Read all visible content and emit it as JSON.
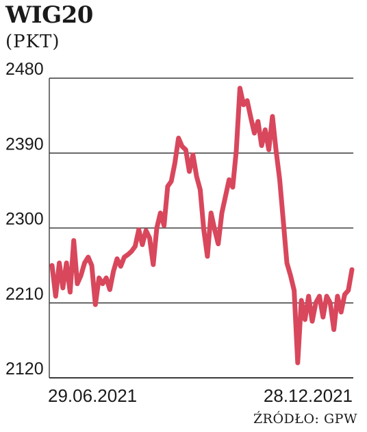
{
  "header": {
    "title": "WIG20",
    "unit": "(PKT)"
  },
  "source": "ŹRÓDŁO: GPW",
  "colors": {
    "line": "#d8475c",
    "grid": "#3a3a3a",
    "text": "#1a1a1a"
  },
  "chart_data": {
    "type": "line",
    "title": "WIG20",
    "ylabel": "(PKT)",
    "ylim": [
      2120,
      2480
    ],
    "yticks": [
      2480,
      2390,
      2300,
      2210,
      2120
    ],
    "x_labels": [
      "29.06.2021",
      "28.12.2021"
    ],
    "grid": "horizontal",
    "series": [
      {
        "values": [
          2255,
          2218,
          2258,
          2228,
          2258,
          2223,
          2285,
          2233,
          2243,
          2258,
          2265,
          2255,
          2208,
          2240,
          2233,
          2240,
          2226,
          2248,
          2263,
          2254,
          2265,
          2268,
          2272,
          2278,
          2298,
          2280,
          2297,
          2288,
          2256,
          2300,
          2318,
          2303,
          2350,
          2356,
          2378,
          2408,
          2398,
          2394,
          2368,
          2388,
          2362,
          2346,
          2298,
          2266,
          2318,
          2298,
          2281,
          2318,
          2338,
          2358,
          2349,
          2393,
          2468,
          2448,
          2453,
          2433,
          2414,
          2428,
          2399,
          2418,
          2394,
          2434,
          2393,
          2358,
          2309,
          2258,
          2243,
          2225,
          2138,
          2213,
          2190,
          2218,
          2188,
          2210,
          2218,
          2193,
          2218,
          2210,
          2178,
          2218,
          2199,
          2220,
          2225,
          2250
        ]
      }
    ]
  }
}
